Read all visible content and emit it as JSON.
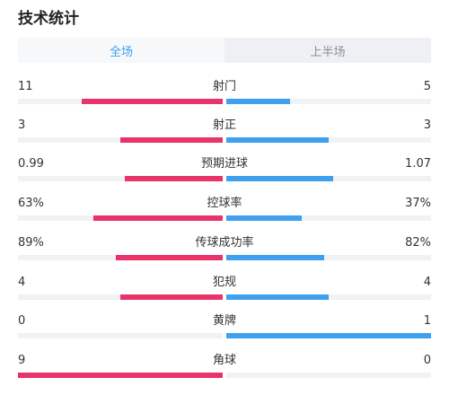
{
  "page_title": "技术统计",
  "tabs": [
    {
      "label": "全场",
      "active": true
    },
    {
      "label": "上半场",
      "active": false
    }
  ],
  "colors": {
    "home": "#e8336b",
    "away": "#3ea0ee",
    "track": "#f1f2f4",
    "active_tab": "#3ea0ee"
  },
  "stats": [
    {
      "label": "射门",
      "home": "11",
      "away": "5",
      "home_fill": 0.69,
      "away_fill": 0.31
    },
    {
      "label": "射正",
      "home": "3",
      "away": "3",
      "home_fill": 0.5,
      "away_fill": 0.5
    },
    {
      "label": "预期进球",
      "home": "0.99",
      "away": "1.07",
      "home_fill": 0.48,
      "away_fill": 0.52
    },
    {
      "label": "控球率",
      "home": "63%",
      "away": "37%",
      "home_fill": 0.63,
      "away_fill": 0.37
    },
    {
      "label": "传球成功率",
      "home": "89%",
      "away": "82%",
      "home_fill": 0.52,
      "away_fill": 0.48
    },
    {
      "label": "犯规",
      "home": "4",
      "away": "4",
      "home_fill": 0.5,
      "away_fill": 0.5
    },
    {
      "label": "黄牌",
      "home": "0",
      "away": "1",
      "home_fill": 0,
      "away_fill": 1
    },
    {
      "label": "角球",
      "home": "9",
      "away": "0",
      "home_fill": 1,
      "away_fill": 0
    }
  ]
}
